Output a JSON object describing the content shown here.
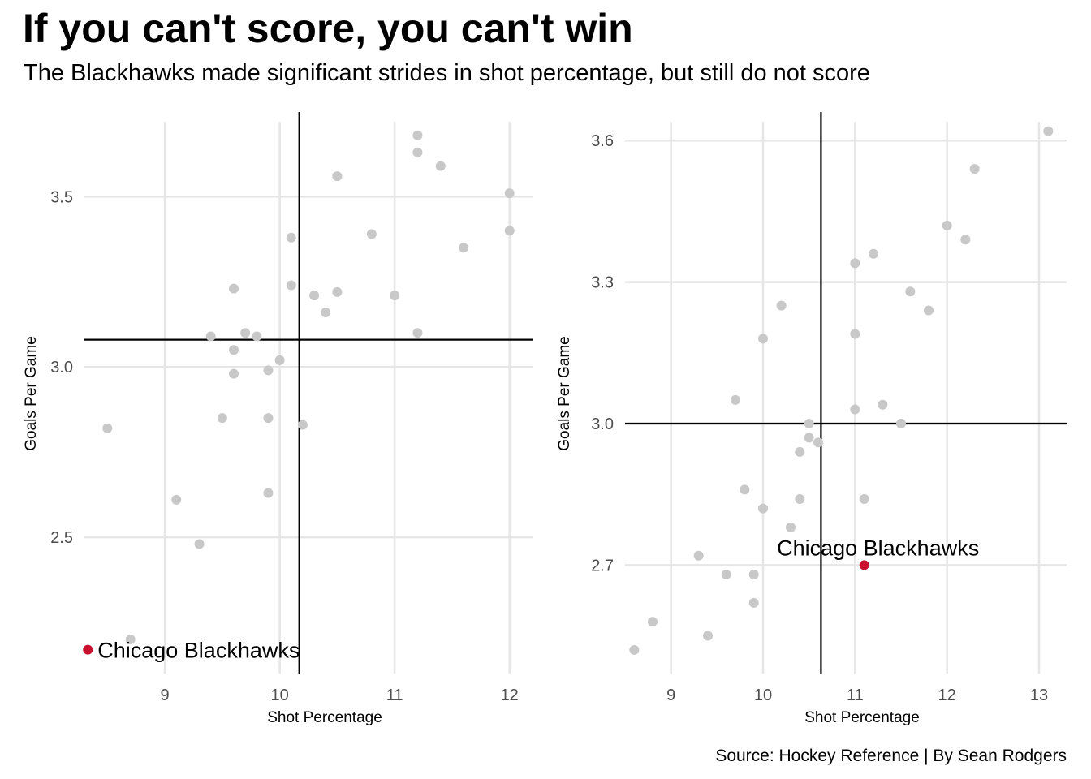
{
  "title": "If you can't score, you can't win",
  "subtitle": "The Blackhawks made significant strides in shot percentage, but still do not score",
  "caption": "Source: Hockey Reference | By Sean Rodgers",
  "colors": {
    "points": "#c8c8c8",
    "highlight": "#c8102e",
    "grid": "#e6e6e6",
    "reference_lines": "#000000"
  },
  "chart_data": [
    {
      "type": "scatter",
      "xlabel": "Shot Percentage",
      "ylabel": "Goals Per Game",
      "xlim": [
        8.3,
        12.2
      ],
      "ylim": [
        2.1,
        3.72
      ],
      "xticks": [
        9,
        10,
        11,
        12
      ],
      "yticks": [
        2.5,
        3.0,
        3.5
      ],
      "ytick_labels": [
        "2.5",
        "3.0",
        "3.5"
      ],
      "reference_x": 10.17,
      "reference_y": 3.08,
      "grid": true,
      "points": [
        [
          8.5,
          2.82
        ],
        [
          8.7,
          2.2
        ],
        [
          9.1,
          2.61
        ],
        [
          9.3,
          2.48
        ],
        [
          9.4,
          3.09
        ],
        [
          9.5,
          2.85
        ],
        [
          9.6,
          3.23
        ],
        [
          9.6,
          3.05
        ],
        [
          9.6,
          2.98
        ],
        [
          9.7,
          3.1
        ],
        [
          9.8,
          3.09
        ],
        [
          9.9,
          2.99
        ],
        [
          9.9,
          2.85
        ],
        [
          9.9,
          2.63
        ],
        [
          10.0,
          3.02
        ],
        [
          10.1,
          3.38
        ],
        [
          10.1,
          3.24
        ],
        [
          10.2,
          2.83
        ],
        [
          10.3,
          3.21
        ],
        [
          10.4,
          3.16
        ],
        [
          10.5,
          3.56
        ],
        [
          10.5,
          3.22
        ],
        [
          10.8,
          3.39
        ],
        [
          11.0,
          3.21
        ],
        [
          11.2,
          3.68
        ],
        [
          11.2,
          3.63
        ],
        [
          11.2,
          3.1
        ],
        [
          11.4,
          3.59
        ],
        [
          11.6,
          3.35
        ],
        [
          12.0,
          3.51
        ],
        [
          12.0,
          3.4
        ]
      ],
      "highlight": {
        "label": "Chicago Blackhawks",
        "x": 8.33,
        "y": 2.17,
        "label_side": "right"
      }
    },
    {
      "type": "scatter",
      "xlabel": "Shot Percentage",
      "ylabel": "Goals Per Game",
      "xlim": [
        8.5,
        13.3
      ],
      "ylim": [
        2.47,
        3.64
      ],
      "xticks": [
        9,
        10,
        11,
        12,
        13
      ],
      "yticks": [
        2.7,
        3.0,
        3.3,
        3.6
      ],
      "ytick_labels": [
        "2.7",
        "3.0",
        "3.3",
        "3.6"
      ],
      "reference_x": 10.63,
      "reference_y": 3.0,
      "grid": true,
      "points": [
        [
          8.6,
          2.52
        ],
        [
          8.8,
          2.58
        ],
        [
          9.3,
          2.72
        ],
        [
          9.4,
          2.55
        ],
        [
          9.6,
          2.68
        ],
        [
          9.7,
          3.05
        ],
        [
          9.8,
          2.86
        ],
        [
          9.9,
          2.68
        ],
        [
          9.9,
          2.62
        ],
        [
          10.0,
          3.18
        ],
        [
          10.0,
          2.82
        ],
        [
          10.2,
          3.25
        ],
        [
          10.3,
          2.78
        ],
        [
          10.4,
          2.94
        ],
        [
          10.4,
          2.84
        ],
        [
          10.5,
          3.0
        ],
        [
          10.5,
          2.97
        ],
        [
          10.6,
          2.96
        ],
        [
          11.0,
          3.34
        ],
        [
          11.0,
          3.19
        ],
        [
          11.0,
          3.03
        ],
        [
          11.1,
          2.84
        ],
        [
          11.2,
          3.36
        ],
        [
          11.3,
          3.04
        ],
        [
          11.5,
          3.0
        ],
        [
          11.6,
          3.28
        ],
        [
          11.8,
          3.24
        ],
        [
          12.0,
          3.42
        ],
        [
          12.2,
          3.39
        ],
        [
          12.3,
          3.54
        ],
        [
          13.1,
          3.62
        ]
      ],
      "highlight": {
        "label": "Chicago Blackhawks",
        "x": 11.1,
        "y": 2.7,
        "label_side": "above"
      }
    }
  ]
}
